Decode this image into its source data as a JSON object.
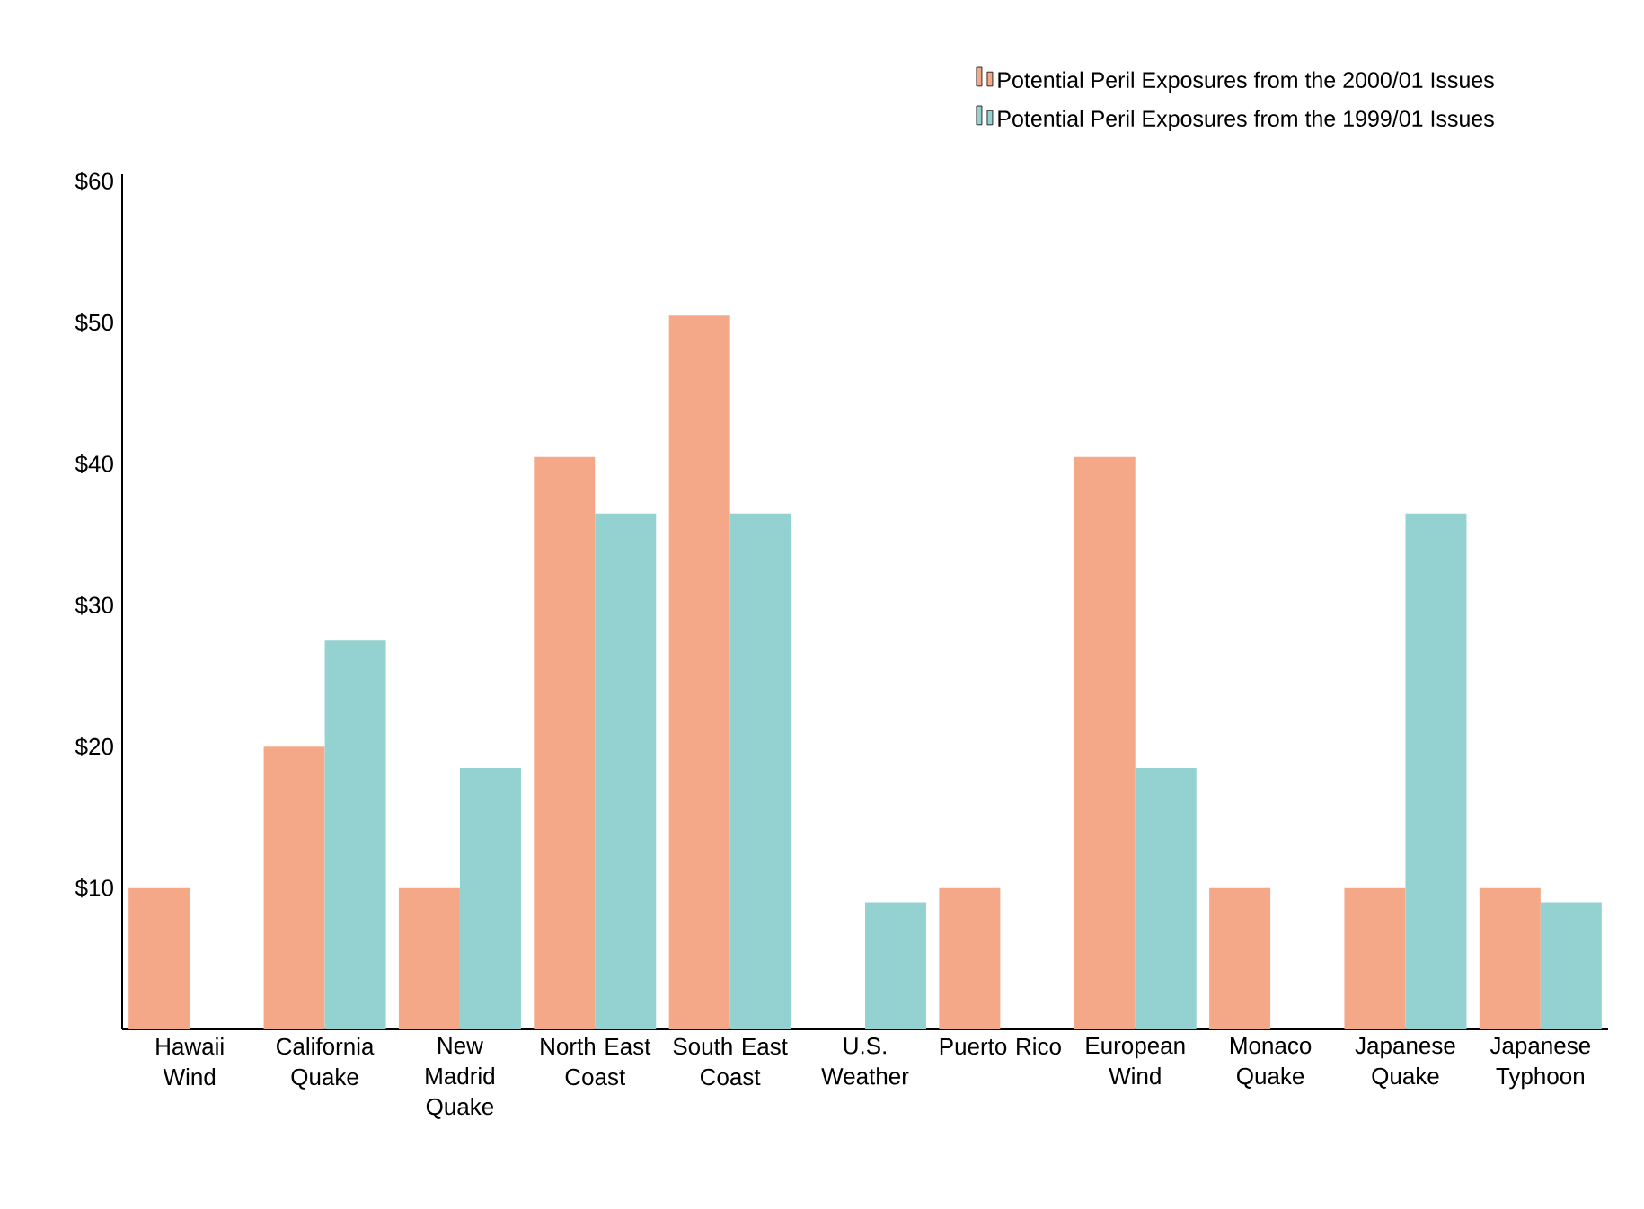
{
  "chart_data": {
    "type": "bar",
    "categories": [
      "Hawaii Wind",
      "California Quake",
      "New Madrid Quake",
      "North East Coast",
      "South East Coast",
      "U.S. Weather",
      "Puerto Rico",
      "European Wind",
      "Monaco Quake",
      "Japanese Quake",
      "Japanese Typhoon"
    ],
    "series": [
      {
        "name": "Potential Peril Exposures from the 2000/01 Issues",
        "color": "#f5a888",
        "values": [
          10,
          20,
          10,
          40.5,
          50.5,
          null,
          10,
          40.5,
          10,
          10,
          10
        ]
      },
      {
        "name": "Potential Peril Exposures from the 1999/01 Issues",
        "color": "#93d2d0",
        "values": [
          null,
          27.5,
          18.5,
          36.5,
          36.5,
          9,
          null,
          18.5,
          null,
          36.5,
          9
        ]
      }
    ],
    "ylim": [
      0,
      60.5
    ],
    "yticks": [
      {
        "value": 10,
        "label": "$10"
      },
      {
        "value": 20,
        "label": "$20"
      },
      {
        "value": 30,
        "label": "$30"
      },
      {
        "value": 40,
        "label": "$40"
      },
      {
        "value": 50,
        "label": "$50"
      },
      {
        "value": 60,
        "label": "$60"
      }
    ],
    "grid": false,
    "legend": "top right"
  }
}
